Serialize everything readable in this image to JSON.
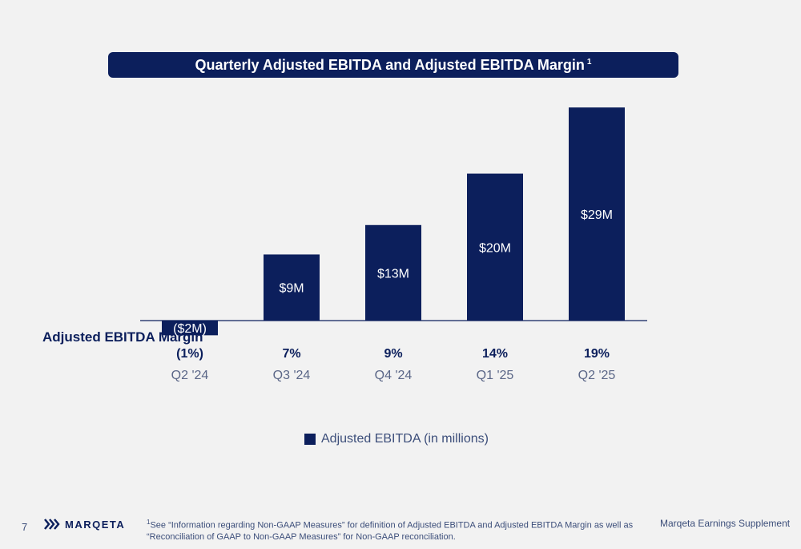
{
  "title": {
    "text": "Quarterly Adjusted EBITDA and Adjusted EBITDA Margin",
    "superscript": "1"
  },
  "margin_row_label": "Adjusted EBITDA Margin",
  "colors": {
    "bar": "#0c1f5c",
    "background": "#f2f2f2",
    "axis": "#0c1f5c",
    "value_label": "#ffffff",
    "tick_label": "#5a6687"
  },
  "chart_data": {
    "type": "bar",
    "categories": [
      "Q2 '24",
      "Q3 '24",
      "Q4 '24",
      "Q1 '25",
      "Q2 '25"
    ],
    "series": [
      {
        "name": "Adjusted EBITDA (in millions)",
        "values": [
          -2,
          9,
          13,
          20,
          29
        ],
        "labels": [
          "($2M)",
          "$9M",
          "$13M",
          "$20M",
          "$29M"
        ]
      }
    ],
    "margins": [
      "(1%)",
      "7%",
      "9%",
      "14%",
      "19%"
    ],
    "ylim": [
      -2,
      29
    ],
    "grid": false,
    "legend": "bottom-center"
  },
  "legend": {
    "label": "Adjusted EBITDA (in millions)"
  },
  "footer": {
    "page_number": "7",
    "logo_text": "MARQETA",
    "footnote_marker": "1",
    "footnote_text": "See “Information regarding Non-GAAP Measures” for definition of Adjusted EBITDA and Adjusted EBITDA Margin as well as “Reconciliation of GAAP to Non-GAAP Measures” for Non-GAAP reconciliation.",
    "right_text": "Marqeta Earnings Supplement"
  }
}
